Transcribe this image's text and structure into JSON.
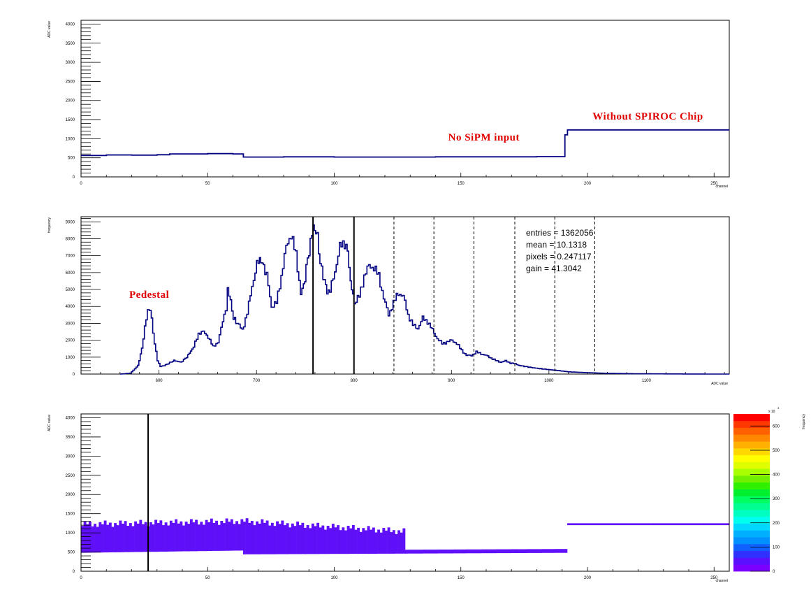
{
  "chart_data": [
    {
      "type": "line",
      "xlabel": "channel",
      "ylabel": "ADC value",
      "xlim": [
        0,
        256
      ],
      "ylim": [
        0,
        4100
      ],
      "x_ticks": [
        0,
        50,
        100,
        150,
        200,
        250
      ],
      "y_ticks": [
        0,
        500,
        1000,
        1500,
        2000,
        2500,
        3000,
        3500,
        4000
      ],
      "series": [
        {
          "color": "#000080",
          "x": [
            0,
            10,
            20,
            30,
            35,
            40,
            50,
            60,
            64,
            64.1,
            80,
            100,
            120,
            140,
            160,
            180,
            191,
            191.1,
            192,
            192.1,
            256
          ],
          "y": [
            560,
            575,
            570,
            580,
            600,
            600,
            610,
            600,
            600,
            520,
            525,
            520,
            520,
            525,
            525,
            530,
            530,
            1100,
            1100,
            1230,
            1230
          ]
        }
      ],
      "annotations": [
        {
          "text": "No SiPM input",
          "x": 145,
          "y": 950
        },
        {
          "text": "Without SPIROC Chip",
          "x": 202,
          "y": 1500
        }
      ]
    },
    {
      "type": "line",
      "xlabel": "ADC value",
      "ylabel": "frequency",
      "xlim": [
        520,
        1185
      ],
      "ylim": [
        0,
        9300
      ],
      "x_ticks": [
        600,
        700,
        800,
        900,
        1000,
        1100
      ],
      "y_ticks": [
        0,
        1000,
        2000,
        3000,
        4000,
        5000,
        6000,
        7000,
        8000,
        9000
      ],
      "series": [
        {
          "color": "#000080",
          "x": [
            560,
            570,
            578,
            582,
            585,
            588,
            590,
            592,
            595,
            598,
            601,
            605,
            615,
            622,
            628,
            635,
            640,
            645,
            650,
            655,
            660,
            665,
            668,
            670,
            673,
            676,
            680,
            685,
            690,
            695,
            700,
            703,
            707,
            710,
            715,
            720,
            725,
            730,
            735,
            740,
            745,
            748,
            752,
            755,
            758,
            762,
            765,
            768,
            772,
            775,
            780,
            785,
            790,
            793,
            796,
            800,
            805,
            810,
            815,
            820,
            825,
            830,
            835,
            840,
            845,
            850,
            855,
            860,
            865,
            870,
            875,
            880,
            885,
            890,
            895,
            900,
            905,
            910,
            915,
            920,
            925,
            930,
            935,
            940,
            945,
            950,
            955,
            960,
            965,
            970,
            980,
            990,
            1000,
            1010,
            1020,
            1040,
            1060,
            1080,
            1100,
            1120,
            1140,
            1160,
            1185
          ],
          "y": [
            0,
            50,
            500,
            1500,
            2800,
            3700,
            3800,
            3200,
            1800,
            800,
            450,
            500,
            800,
            700,
            1000,
            1600,
            2400,
            2500,
            2200,
            1600,
            1900,
            3100,
            3900,
            5000,
            4300,
            3300,
            3000,
            2600,
            3600,
            5200,
            6500,
            6800,
            6400,
            5800,
            4000,
            4200,
            5800,
            7500,
            8300,
            7000,
            4800,
            5200,
            6800,
            7800,
            8700,
            8200,
            6500,
            5800,
            4900,
            4900,
            6100,
            7500,
            7800,
            7200,
            5500,
            4200,
            4600,
            5800,
            6400,
            6300,
            5800,
            4500,
            3500,
            4200,
            4800,
            4600,
            3500,
            2900,
            2700,
            3300,
            3100,
            2600,
            2100,
            1800,
            1900,
            2000,
            1800,
            1400,
            1100,
            1100,
            1300,
            1200,
            1100,
            950,
            800,
            700,
            780,
            650,
            600,
            500,
            400,
            320,
            260,
            200,
            130,
            80,
            40,
            25,
            15,
            10,
            5,
            2,
            0
          ]
        }
      ],
      "markers": {
        "solid": [
          758,
          800
        ],
        "dashed": [
          841,
          882,
          923,
          965,
          1006,
          1047
        ]
      },
      "stats": [
        "entries = 1362056",
        "mean = 10.1318",
        "pixels = 0.247117",
        "gain = 41.3042"
      ],
      "annotations": [
        {
          "text": "Pedestal",
          "x": 590,
          "y": 4500
        }
      ]
    },
    {
      "type": "heatmap",
      "xlabel": "channel",
      "ylabel": "ADC value",
      "zlabel": "frequency",
      "zscale_label": "x 10",
      "zscale_exponent": "3",
      "xlim": [
        0,
        256
      ],
      "ylim": [
        0,
        4100
      ],
      "zlim": [
        0,
        650
      ],
      "x_ticks": [
        0,
        50,
        100,
        150,
        200,
        250
      ],
      "y_ticks": [
        0,
        500,
        1000,
        1500,
        2000,
        2500,
        3000,
        3500,
        4000
      ],
      "z_ticks": [
        0,
        100,
        200,
        300,
        400,
        500,
        600
      ],
      "vertical_line_x": 26.5,
      "bands": [
        {
          "x": [
            0,
            64
          ],
          "low": [
            480,
            540
          ],
          "high": [
            1240,
            1320
          ]
        },
        {
          "x": [
            64,
            128
          ],
          "low": [
            440,
            460
          ],
          "high": [
            1320,
            1050
          ]
        },
        {
          "x": [
            128,
            192
          ],
          "low": [
            460,
            480
          ],
          "high": [
            560,
            580
          ]
        },
        {
          "x": [
            192,
            256
          ],
          "low": [
            1200,
            1200
          ],
          "high": [
            1250,
            1250
          ]
        }
      ],
      "band_color": "#6010f8",
      "colorbar": [
        "#7a00ff",
        "#5a10ff",
        "#3030ff",
        "#1060ff",
        "#0090ff",
        "#00b0ff",
        "#00d8ff",
        "#00ffee",
        "#00ffc0",
        "#00ff90",
        "#00ff60",
        "#00f030",
        "#30f000",
        "#70f000",
        "#a8ff00",
        "#dfff00",
        "#ffff00",
        "#ffd800",
        "#ffb000",
        "#ff8800",
        "#ff6000",
        "#ff3800",
        "#ff0000"
      ]
    }
  ]
}
